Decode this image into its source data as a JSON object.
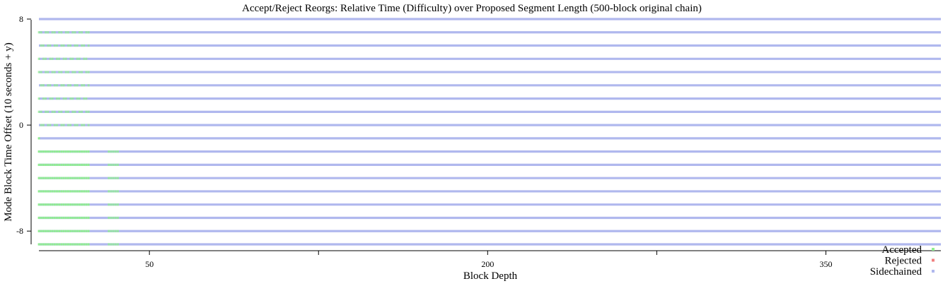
{
  "chart_data": {
    "type": "scatter",
    "title": "Accept/Reject Reorgs: Relative Time (Difficulty) over Proposed Segment Length (500-block original chain)",
    "xlabel": "Block Depth",
    "ylabel": "Mode Block Time Offset (10 seconds + y)",
    "xlim": [
      1,
      401
    ],
    "ylim": [
      -9,
      8
    ],
    "x_ticks": [
      {
        "value": 50,
        "label": "50"
      },
      {
        "value": 125,
        "label": ""
      },
      {
        "value": 200,
        "label": "200"
      },
      {
        "value": 275,
        "label": ""
      },
      {
        "value": 350,
        "label": "350"
      }
    ],
    "y_ticks": [
      {
        "value": 8,
        "label": "8"
      },
      {
        "value": 0,
        "label": "0"
      },
      {
        "value": -8,
        "label": "-8"
      }
    ],
    "grid": false,
    "legend_position": "bottom-right",
    "series": [
      {
        "name": "Accepted",
        "color": "#90ee90"
      },
      {
        "name": "Rejected",
        "color": "#f08080"
      },
      {
        "name": "Sidechained",
        "color": "#b0b8ee"
      }
    ],
    "sidechained_rows": {
      "y": [
        8,
        7,
        6,
        5,
        4,
        3,
        2,
        1,
        0,
        -1,
        -2,
        -3,
        -4,
        -5,
        -6,
        -7,
        -8,
        -9
      ],
      "x_from": 1,
      "x_to": 401
    },
    "accepted_groups": [
      {
        "y_from": -9,
        "y_to": -2,
        "x_from": 1,
        "x_to": 23,
        "extra_x": [
          32,
          33,
          34,
          35,
          36
        ]
      },
      {
        "y_from": -1,
        "y_to": -1,
        "x_from": 1,
        "x_to": 1,
        "extra_x": []
      },
      {
        "y_from": 0,
        "y_to": 7,
        "x_from": 1,
        "x_to": 23,
        "sparse": true,
        "extra_x": []
      }
    ]
  }
}
